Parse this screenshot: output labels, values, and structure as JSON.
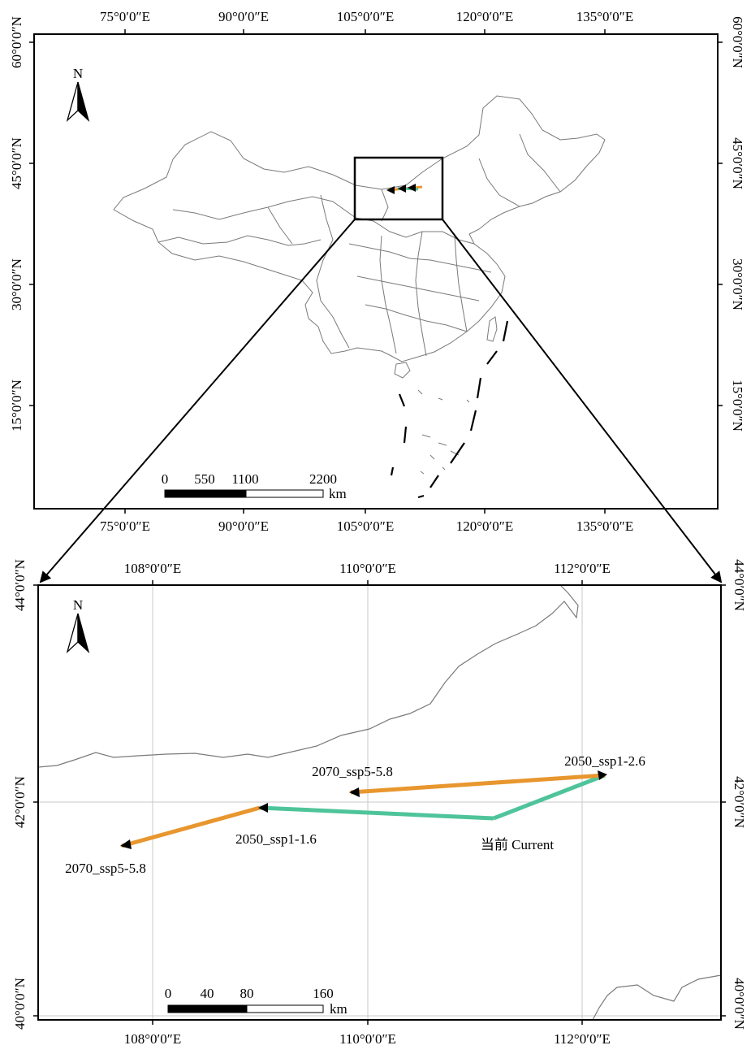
{
  "overview": {
    "top_lon_labels": [
      "75°0′0″E",
      "90°0′0″E",
      "105°0′0″E",
      "120°0′0″E",
      "135°0′0″E"
    ],
    "bottom_lon_labels": [
      "75°0′0″E",
      "90°0′0″E",
      "105°0′0″E",
      "120°0′0″E",
      "135°0′0″E"
    ],
    "left_lat_labels": [
      "60°0′0″N",
      "45°0′0″N",
      "30°0′0″N",
      "15°0′0″N"
    ],
    "right_lat_labels": [
      "60°0′0″N",
      "45°0′0″N",
      "30°0′0″N",
      "15°0′0″N"
    ],
    "north_label": "N",
    "scale_labels": [
      "0",
      "550",
      "1100",
      "2200"
    ],
    "scale_unit": "km"
  },
  "detail": {
    "top_lon_labels": [
      "108°0′0″E",
      "110°0′0″E",
      "112°0′0″E"
    ],
    "bottom_lon_labels": [
      "108°0′0″E",
      "110°0′0″E",
      "112°0′0″E"
    ],
    "left_lat_labels": [
      "44°0′0″N",
      "42°0′0″N",
      "40°0′0″N"
    ],
    "right_lat_labels": [
      "44°0′0″N",
      "42°0′0″N",
      "40°0′0″N"
    ],
    "north_label": "N",
    "scale_labels": [
      "0",
      "40",
      "80",
      "160"
    ],
    "scale_unit": "km",
    "points": {
      "current": "当前 Current",
      "ssp126_2050": "2050_ssp1-1.6",
      "ssp126_2070": "2070_ssp5-5.8",
      "ssp585_2050": "2050_ssp1-2.6",
      "ssp585_2070": "2070_ssp5-5.8"
    }
  },
  "colors": {
    "ssp126_track": "#4fc49b",
    "ssp585_track": "#e8962e",
    "boundary": "#7a7a7a",
    "grid": "#c8c8c8"
  }
}
